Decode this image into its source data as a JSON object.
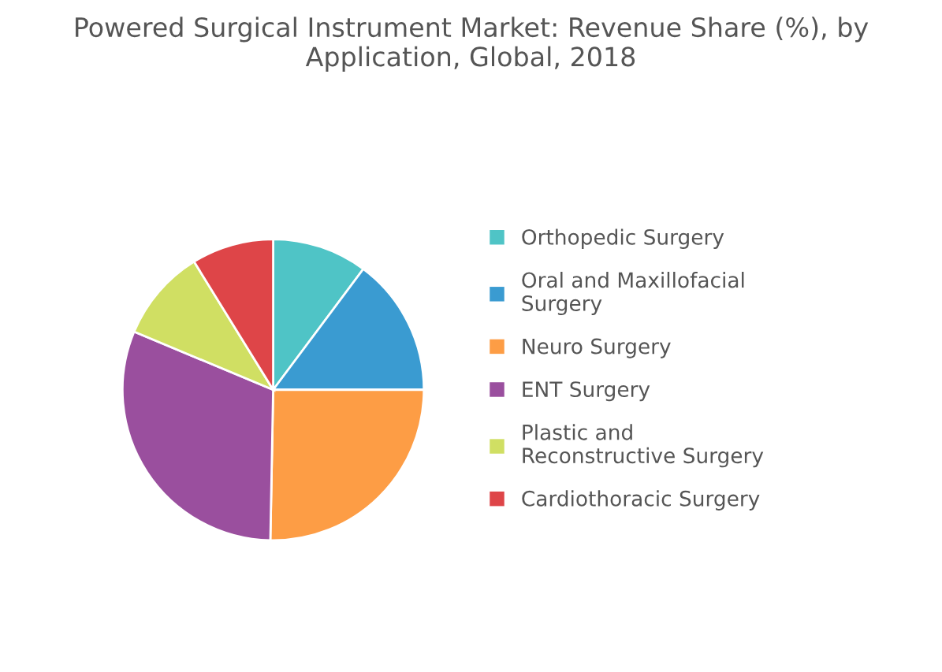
{
  "chart_data": {
    "type": "pie",
    "title": "Powered Surgical Instrument Market: Revenue Share (%), by Application, Global, 2018",
    "categories": [
      "Orthopedic Surgery",
      "Oral and Maxillofacial Surgery",
      "Neuro Surgery",
      "ENT Surgery",
      "Plastic and Reconstructive Surgery",
      "Cardiothoracic Surgery"
    ],
    "values": [
      10.2,
      14.8,
      25.3,
      31.0,
      9.9,
      8.8
    ],
    "colors": [
      "#4fc4c6",
      "#3a9bd1",
      "#fd9d45",
      "#9a4f9e",
      "#d0df63",
      "#de4548"
    ],
    "legend": "right"
  }
}
